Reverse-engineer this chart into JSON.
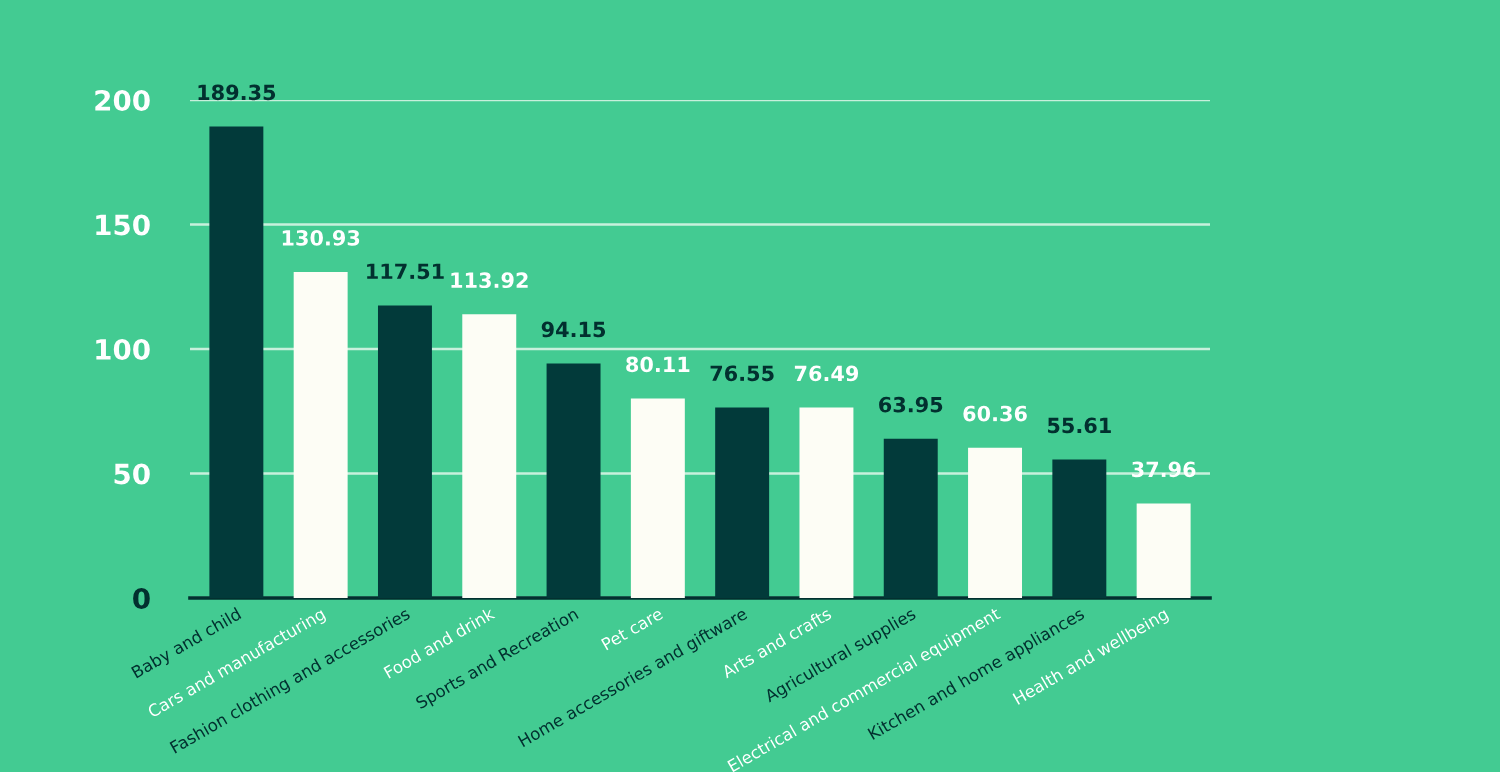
{
  "chart_data": {
    "type": "bar",
    "categories": [
      "Baby and child",
      "Cars and manufacturing",
      "Fashion clothing and accessories",
      "Food and drink",
      "Sports and Recreation",
      "Pet care",
      "Home accessories and giftware",
      "Arts and crafts",
      "Agricultural supplies",
      "Electrical and commercial equipment",
      "Kitchen and home appliances",
      "Health and wellbeing"
    ],
    "values": [
      189.35,
      130.93,
      117.51,
      113.92,
      94.15,
      80.11,
      76.55,
      76.49,
      63.95,
      60.36,
      55.61,
      37.96
    ],
    "colors": [
      "#023a3a",
      "#fdfdf5",
      "#023a3a",
      "#fdfdf5",
      "#023a3a",
      "#fdfdf5",
      "#023a3a",
      "#fdfdf5",
      "#023a3a",
      "#fdfdf5",
      "#023a3a",
      "#fdfdf5"
    ],
    "data_labels": true,
    "ylim": [
      0,
      200
    ],
    "yticks": [
      0,
      50,
      100,
      150,
      200
    ],
    "grid": "y"
  }
}
